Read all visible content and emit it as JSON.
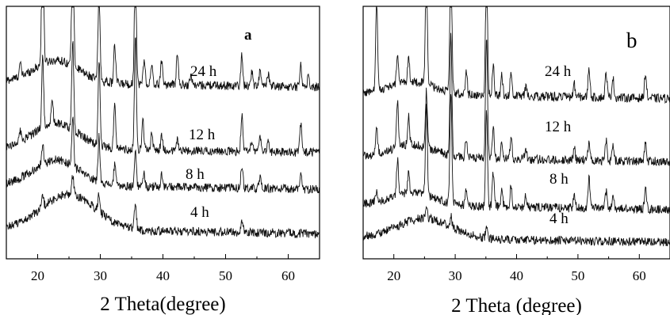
{
  "chart_data": [
    {
      "panel": "a",
      "type": "line",
      "title": "",
      "xlabel": "2 Theta(degree)",
      "ylabel": "",
      "xlim": [
        15,
        65
      ],
      "xticks": [
        20,
        30,
        40,
        50,
        60
      ],
      "xtick_labels": [
        "20",
        "30",
        "40",
        "50",
        "60"
      ],
      "grid": false,
      "legend": "none",
      "series": [
        {
          "name": "24 h",
          "base": 0.7,
          "hump": {
            "center": 23,
            "width": 5,
            "height": 0.09
          },
          "peaks": [
            [
              17.2,
              0.05
            ],
            [
              20.8,
              0.62
            ],
            [
              25.6,
              0.62
            ],
            [
              29.8,
              0.35
            ],
            [
              32.3,
              0.15
            ],
            [
              35.6,
              0.5
            ],
            [
              37.0,
              0.1
            ],
            [
              38.2,
              0.07
            ],
            [
              39.8,
              0.1
            ],
            [
              42.3,
              0.12
            ],
            [
              44.5,
              0.04
            ],
            [
              52.6,
              0.12
            ],
            [
              54.2,
              0.06
            ],
            [
              55.5,
              0.06
            ],
            [
              56.8,
              0.05
            ],
            [
              62.0,
              0.09
            ],
            [
              63.2,
              0.04
            ]
          ]
        },
        {
          "name": "12 h",
          "base": 0.44,
          "hump": {
            "center": 23,
            "width": 5,
            "height": 0.1
          },
          "peaks": [
            [
              17.2,
              0.04
            ],
            [
              20.8,
              0.28
            ],
            [
              22.3,
              0.1
            ],
            [
              25.6,
              0.35
            ],
            [
              29.8,
              0.33
            ],
            [
              32.3,
              0.18
            ],
            [
              35.6,
              0.45
            ],
            [
              36.8,
              0.12
            ],
            [
              38.2,
              0.06
            ],
            [
              39.8,
              0.06
            ],
            [
              42.3,
              0.05
            ],
            [
              52.6,
              0.14
            ],
            [
              54.2,
              0.05
            ],
            [
              55.5,
              0.07
            ],
            [
              56.8,
              0.05
            ],
            [
              62.0,
              0.12
            ]
          ]
        },
        {
          "name": "8 h",
          "base": 0.295,
          "hump": {
            "center": 23,
            "width": 5,
            "height": 0.1
          },
          "peaks": [
            [
              20.8,
              0.08
            ],
            [
              25.6,
              0.2
            ],
            [
              29.8,
              0.18
            ],
            [
              32.3,
              0.08
            ],
            [
              35.6,
              0.14
            ],
            [
              37.0,
              0.05
            ],
            [
              39.8,
              0.05
            ],
            [
              52.6,
              0.09
            ],
            [
              55.5,
              0.04
            ],
            [
              62.0,
              0.06
            ]
          ]
        },
        {
          "name": "4 h",
          "base": 0.12,
          "hump": {
            "center": 25,
            "width": 6,
            "height": 0.14
          },
          "peaks": [
            [
              20.8,
              0.04
            ],
            [
              25.6,
              0.08
            ],
            [
              29.8,
              0.07
            ],
            [
              35.6,
              0.1
            ],
            [
              52.6,
              0.04
            ]
          ]
        }
      ]
    },
    {
      "panel": "b",
      "type": "line",
      "title": "",
      "xlabel": "2 Theta (degree)",
      "ylabel": "",
      "xlim": [
        15,
        65
      ],
      "xticks": [
        20,
        30,
        40,
        50,
        60
      ],
      "xtick_labels": [
        "20",
        "30",
        "40",
        "50",
        "60"
      ],
      "grid": false,
      "legend": "none",
      "series": [
        {
          "name": "24 h",
          "base": 0.655,
          "hump": {
            "center": 23,
            "width": 5,
            "height": 0.05
          },
          "peaks": [
            [
              17.2,
              0.35
            ],
            [
              20.6,
              0.12
            ],
            [
              22.4,
              0.1
            ],
            [
              25.3,
              0.5
            ],
            [
              29.3,
              0.62
            ],
            [
              31.8,
              0.1
            ],
            [
              35.1,
              0.55
            ],
            [
              36.2,
              0.12
            ],
            [
              37.6,
              0.08
            ],
            [
              39.1,
              0.1
            ],
            [
              41.5,
              0.04
            ],
            [
              49.4,
              0.05
            ],
            [
              51.8,
              0.12
            ],
            [
              54.6,
              0.1
            ],
            [
              55.7,
              0.08
            ],
            [
              61.0,
              0.1
            ]
          ]
        },
        {
          "name": "12 h",
          "base": 0.405,
          "hump": {
            "center": 23,
            "width": 5,
            "height": 0.05
          },
          "peaks": [
            [
              17.2,
              0.1
            ],
            [
              20.6,
              0.18
            ],
            [
              22.4,
              0.12
            ],
            [
              25.3,
              0.22
            ],
            [
              29.3,
              0.48
            ],
            [
              31.8,
              0.08
            ],
            [
              35.1,
              0.48
            ],
            [
              36.2,
              0.12
            ],
            [
              37.6,
              0.06
            ],
            [
              39.1,
              0.08
            ],
            [
              41.5,
              0.04
            ],
            [
              49.4,
              0.05
            ],
            [
              51.8,
              0.08
            ],
            [
              54.6,
              0.08
            ],
            [
              55.7,
              0.06
            ],
            [
              61.0,
              0.08
            ]
          ]
        },
        {
          "name": "8 h",
          "base": 0.215,
          "hump": {
            "center": 23,
            "width": 5,
            "height": 0.05
          },
          "peaks": [
            [
              17.2,
              0.04
            ],
            [
              20.6,
              0.14
            ],
            [
              22.4,
              0.08
            ],
            [
              25.3,
              0.36
            ],
            [
              29.3,
              0.45
            ],
            [
              31.8,
              0.06
            ],
            [
              35.1,
              0.38
            ],
            [
              36.2,
              0.13
            ],
            [
              37.6,
              0.06
            ],
            [
              39.1,
              0.09
            ],
            [
              41.5,
              0.05
            ],
            [
              49.4,
              0.05
            ],
            [
              51.8,
              0.13
            ],
            [
              54.6,
              0.07
            ],
            [
              55.7,
              0.05
            ],
            [
              61.0,
              0.08
            ]
          ]
        },
        {
          "name": "4 h",
          "base": 0.085,
          "hump": {
            "center": 25,
            "width": 6,
            "height": 0.08
          },
          "peaks": [
            [
              25.3,
              0.05
            ],
            [
              29.3,
              0.04
            ],
            [
              35.1,
              0.04
            ]
          ]
        }
      ]
    }
  ]
}
